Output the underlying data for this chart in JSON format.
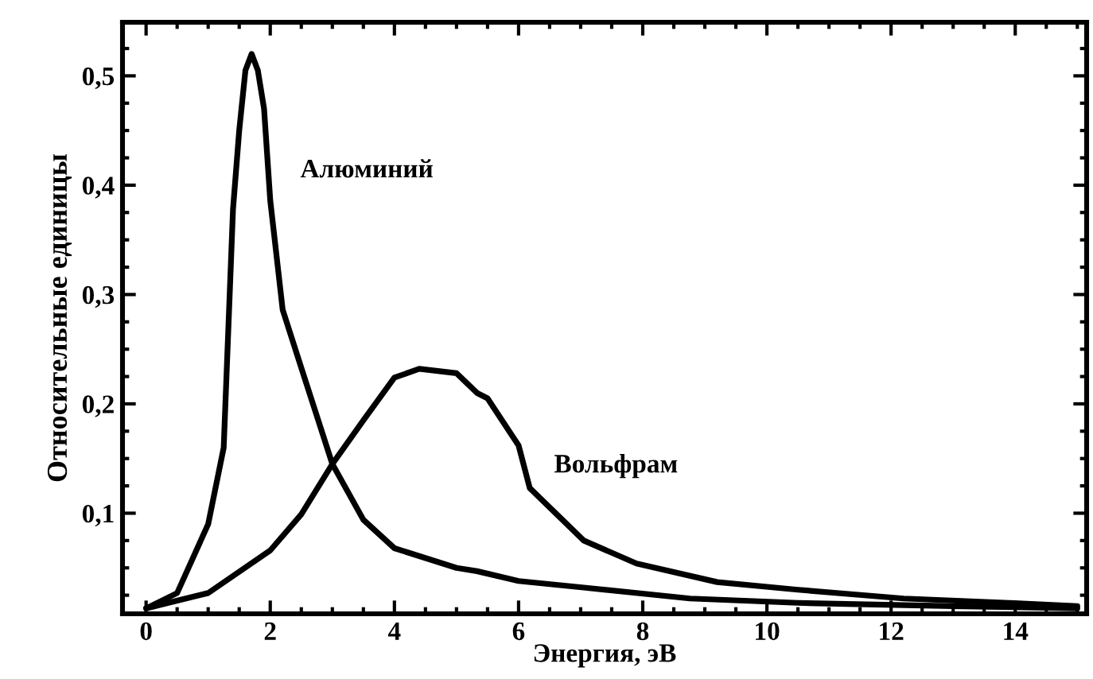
{
  "chart_data": {
    "type": "line",
    "xlabel": "Энергия, эВ",
    "ylabel": "Относительные единицы",
    "xlim": [
      -0.38,
      15.15
    ],
    "ylim": [
      0.008,
      0.549
    ],
    "xticks": [
      0,
      2,
      4,
      6,
      8,
      10,
      12,
      14
    ],
    "yticks": [
      {
        "value": 0.1,
        "label": "0,1"
      },
      {
        "value": 0.2,
        "label": "0,2"
      },
      {
        "value": 0.3,
        "label": "0,3"
      },
      {
        "value": 0.4,
        "label": "0,4"
      },
      {
        "value": 0.5,
        "label": "0,5"
      }
    ],
    "grid": false,
    "legend": false,
    "marker": "none",
    "line_style": "solid",
    "series": [
      {
        "name": "Алюминий",
        "color": "#000000",
        "x": [
          0,
          0.5,
          1.0,
          1.25,
          1.4,
          1.5,
          1.6,
          1.7,
          1.8,
          1.9,
          2.0,
          2.2,
          2.5,
          3.0,
          3.5,
          4.0,
          5.0,
          5.33,
          6.0,
          7.05,
          8.76,
          10.5,
          13.0,
          15.0
        ],
        "values": [
          0.013,
          0.027,
          0.09,
          0.16,
          0.378,
          0.45,
          0.505,
          0.52,
          0.505,
          0.47,
          0.386,
          0.286,
          0.233,
          0.145,
          0.094,
          0.068,
          0.05,
          0.047,
          0.038,
          0.032,
          0.022,
          0.018,
          0.015,
          0.013
        ]
      },
      {
        "name": "Вольфрам",
        "color": "#000000",
        "x": [
          0,
          1.0,
          2.0,
          2.5,
          3.0,
          3.5,
          4.0,
          4.4,
          5.0,
          5.33,
          5.5,
          6.0,
          6.18,
          7.05,
          7.9,
          9.2,
          10.5,
          12.2,
          13.9,
          15.0
        ],
        "values": [
          0.013,
          0.027,
          0.066,
          0.099,
          0.145,
          0.185,
          0.224,
          0.232,
          0.228,
          0.21,
          0.205,
          0.162,
          0.123,
          0.075,
          0.054,
          0.037,
          0.03,
          0.022,
          0.018,
          0.015
        ]
      }
    ]
  }
}
